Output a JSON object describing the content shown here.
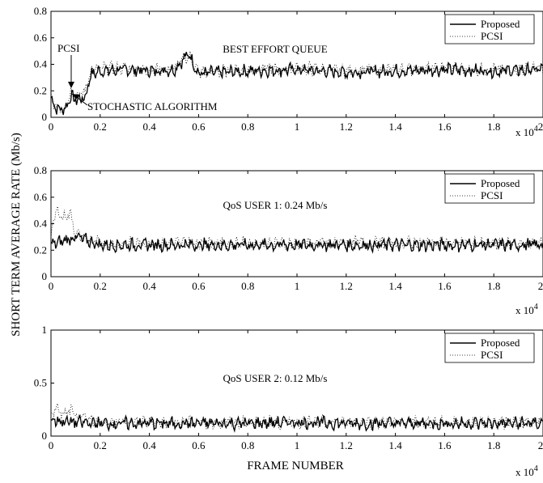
{
  "figure": {
    "ylabel": "SHORT TERM AVERAGE RATE (Mb/s)",
    "xlabel": "FRAME NUMBER",
    "x_multiplier": "x 10",
    "x_multiplier_exp": "4",
    "legend": [
      "Proposed",
      "PCSI"
    ]
  },
  "chart_data": [
    {
      "type": "line",
      "annotation": "BEST EFFORT QUEUE",
      "callouts": [
        "PCSI",
        "STOCHASTIC ALGORITHM"
      ],
      "xlim": [
        0,
        2
      ],
      "ylim": [
        0,
        0.8
      ],
      "xticks": [
        "0",
        "0.2",
        "0.4",
        "0.6",
        "0.8",
        "1",
        "1.2",
        "1.4",
        "1.6",
        "1.8",
        "2"
      ],
      "yticks": [
        "0",
        "0.2",
        "0.4",
        "0.6",
        "0.8"
      ],
      "legend_position": "top-right",
      "series": [
        {
          "name": "Proposed",
          "style": "solid",
          "x": [
            0,
            0.02,
            0.04,
            0.06,
            0.08,
            0.1,
            0.12,
            0.14,
            0.16,
            0.2,
            0.3,
            0.4,
            0.5,
            0.56,
            0.6,
            0.8,
            1.0,
            1.2,
            1.4,
            1.6,
            1.8,
            2.0
          ],
          "y": [
            0.15,
            0.07,
            0.06,
            0.07,
            0.16,
            0.13,
            0.14,
            0.15,
            0.32,
            0.35,
            0.36,
            0.35,
            0.36,
            0.48,
            0.33,
            0.35,
            0.36,
            0.34,
            0.35,
            0.36,
            0.35,
            0.36
          ]
        },
        {
          "name": "PCSI",
          "style": "dotted",
          "x": [
            0,
            0.02,
            0.04,
            0.06,
            0.08,
            0.1,
            0.12,
            0.14,
            0.16,
            0.2,
            0.3,
            0.4,
            0.5,
            0.56,
            0.6,
            0.8,
            1.0,
            1.2,
            1.4,
            1.6,
            1.8,
            2.0
          ],
          "y": [
            0.14,
            0.08,
            0.07,
            0.08,
            0.2,
            0.17,
            0.17,
            0.2,
            0.35,
            0.37,
            0.37,
            0.36,
            0.37,
            0.47,
            0.34,
            0.36,
            0.37,
            0.35,
            0.36,
            0.37,
            0.36,
            0.37
          ]
        }
      ]
    },
    {
      "type": "line",
      "annotation": "QoS USER 1: 0.24 Mb/s",
      "xlim": [
        0,
        2
      ],
      "ylim": [
        0,
        0.8
      ],
      "xticks": [
        "0",
        "0.2",
        "0.4",
        "0.6",
        "0.8",
        "1",
        "1.2",
        "1.4",
        "1.6",
        "1.8",
        "2"
      ],
      "yticks": [
        "0",
        "0.2",
        "0.4",
        "0.6",
        "0.8"
      ],
      "legend_position": "top-right",
      "series": [
        {
          "name": "Proposed",
          "style": "solid",
          "x": [
            0,
            0.1,
            0.2,
            0.4,
            0.6,
            0.8,
            1.0,
            1.2,
            1.4,
            1.6,
            1.8,
            2.0
          ],
          "y": [
            0.24,
            0.3,
            0.24,
            0.24,
            0.24,
            0.24,
            0.24,
            0.24,
            0.24,
            0.24,
            0.24,
            0.24
          ]
        },
        {
          "name": "PCSI",
          "style": "dotted",
          "x": [
            0,
            0.02,
            0.05,
            0.08,
            0.1,
            0.2,
            0.4,
            0.6,
            0.8,
            1.0,
            1.2,
            1.4,
            1.6,
            1.8,
            2.0
          ],
          "y": [
            0.3,
            0.5,
            0.45,
            0.48,
            0.32,
            0.25,
            0.25,
            0.26,
            0.25,
            0.25,
            0.26,
            0.25,
            0.26,
            0.25,
            0.25
          ]
        }
      ]
    },
    {
      "type": "line",
      "annotation": "QoS USER 2: 0.12 Mb/s",
      "xlim": [
        0,
        2
      ],
      "ylim": [
        0,
        1
      ],
      "xticks": [
        "0",
        "0.2",
        "0.4",
        "0.6",
        "0.8",
        "1",
        "1.2",
        "1.4",
        "1.6",
        "1.8",
        "2"
      ],
      "yticks": [
        "0",
        "0.5",
        "1"
      ],
      "legend_position": "top-right",
      "series": [
        {
          "name": "Proposed",
          "style": "solid",
          "x": [
            0,
            0.1,
            0.2,
            0.4,
            0.6,
            0.8,
            1.0,
            1.2,
            1.4,
            1.6,
            1.8,
            2.0
          ],
          "y": [
            0.15,
            0.13,
            0.12,
            0.12,
            0.12,
            0.12,
            0.13,
            0.12,
            0.12,
            0.12,
            0.12,
            0.12
          ]
        },
        {
          "name": "PCSI",
          "style": "dotted",
          "x": [
            0,
            0.02,
            0.05,
            0.08,
            0.1,
            0.2,
            0.4,
            0.6,
            0.8,
            1.0,
            1.2,
            1.4,
            1.6,
            1.8,
            2.0
          ],
          "y": [
            0.2,
            0.26,
            0.2,
            0.24,
            0.18,
            0.13,
            0.13,
            0.13,
            0.13,
            0.13,
            0.13,
            0.13,
            0.13,
            0.13,
            0.13
          ]
        }
      ]
    }
  ]
}
